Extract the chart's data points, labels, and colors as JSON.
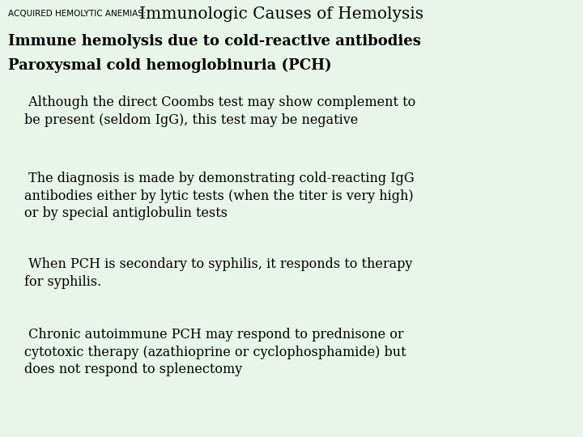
{
  "bg_color": "#e8f5e9",
  "title_small": "ACQUIRED HEMOLYTIC ANEMIAS:",
  "title_large": "Immunologic Causes of Hemolysis",
  "subtitle1": "Immune hemolysis due to cold-reactive antibodies",
  "subtitle2": "Paroxysmal cold hemoglobinuria (PCH)",
  "bullets": [
    " Although the direct Coombs test may show complement to\nbe present (seldom IgG), this test may be negative",
    " The diagnosis is made by demonstrating cold-reacting IgG\nantibodies either by lytic tests (when the titer is very high)\nor by special antiglobulin tests",
    " When PCH is secondary to syphilis, it responds to therapy\nfor syphilis.",
    " Chronic autoimmune PCH may respond to prednisone or\ncytotoxic therapy (azathioprine or cyclophosphamide) but\ndoes not respond to splenectomy"
  ],
  "text_color": "#000000",
  "title_small_fontsize": 7.5,
  "title_large_fontsize": 14.5,
  "subtitle_fontsize": 13,
  "bullet_fontsize": 11.5,
  "fig_width": 7.2,
  "fig_height": 5.4,
  "dpi": 100
}
